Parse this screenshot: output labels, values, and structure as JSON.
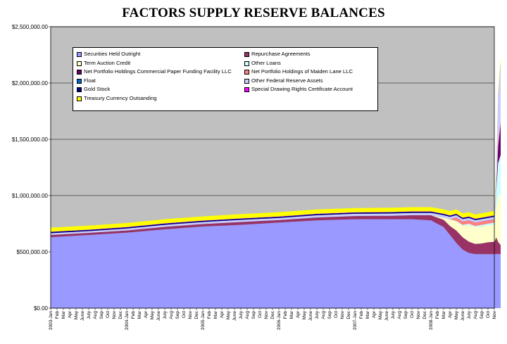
{
  "chart_data": {
    "type": "area",
    "title": "FACTORS SUPPLY RESERVE BALANCES",
    "stacked": true,
    "ylim": [
      0,
      2500000
    ],
    "y_ticks": [
      "$0.00",
      "$500,000.00",
      "$1,000,000.00",
      "$1,500,000.00",
      "$2,000,000.00",
      "$2,500,000.00"
    ],
    "y_tick_values": [
      0,
      500000,
      1000000,
      1500000,
      2000000,
      2500000
    ],
    "x_tick_labels": [
      "2003-Jan",
      "Feb",
      "Mar",
      "Apr",
      "May",
      "June",
      "July",
      "Aug",
      "Sep",
      "Oct",
      "Nov",
      "Dec",
      "2004-Jan",
      "Feb",
      "Mar",
      "Apr",
      "May",
      "June",
      "July",
      "Aug",
      "Sep",
      "Oct",
      "Nov",
      "Dec",
      "2005-Jan",
      "Feb",
      "Mar",
      "Apr",
      "May",
      "June",
      "July",
      "Aug",
      "Sep",
      "Oct",
      "Nov",
      "Dec",
      "2006-Jan",
      "Feb",
      "Mar",
      "Apr",
      "May",
      "June",
      "July",
      "Aug",
      "Sep",
      "Oct",
      "Nov",
      "Dec",
      "2007-Jan",
      "Feb",
      "Mar",
      "Apr",
      "May",
      "June",
      "July",
      "Aug",
      "Sep",
      "Oct",
      "Nov",
      "Dec",
      "2008-Jan",
      "Feb",
      "Mar",
      "Apr",
      "May",
      "June",
      "July",
      "Aug",
      "Sep",
      "Oct",
      "Nov"
    ],
    "x": [
      0,
      6,
      12,
      18,
      24,
      30,
      36,
      42,
      48,
      54,
      57,
      60,
      62,
      63,
      64,
      65,
      66,
      67,
      68,
      69,
      70,
      70.3,
      70.6,
      71
    ],
    "series": [
      {
        "name": "Securities Held Outright",
        "color": "#9999ff",
        "values": [
          630000,
          650000,
          670000,
          700000,
          725000,
          740000,
          760000,
          780000,
          790000,
          790000,
          790000,
          780000,
          720000,
          650000,
          580000,
          520000,
          490000,
          480000,
          480000,
          480000,
          480000,
          480000,
          480000,
          480000
        ]
      },
      {
        "name": "Repurchase Agreements",
        "color": "#993366",
        "values": [
          20000,
          18000,
          20000,
          22000,
          22000,
          25000,
          22000,
          25000,
          28000,
          30000,
          35000,
          45000,
          65000,
          80000,
          110000,
          110000,
          100000,
          90000,
          95000,
          105000,
          110000,
          150000,
          110000,
          80000
        ]
      },
      {
        "name": "Term Auction Credit",
        "color": "#ffffcc",
        "values": [
          0,
          0,
          0,
          0,
          0,
          0,
          0,
          0,
          0,
          0,
          0,
          0,
          20000,
          60000,
          80000,
          100000,
          150000,
          150000,
          150000,
          150000,
          150000,
          250000,
          400000,
          450000
        ]
      },
      {
        "name": "Other Loans",
        "color": "#ccffff",
        "values": [
          0,
          0,
          0,
          0,
          0,
          0,
          0,
          0,
          0,
          0,
          0,
          0,
          0,
          0,
          5000,
          10000,
          10000,
          10000,
          15000,
          15000,
          20000,
          150000,
          300000,
          350000
        ]
      },
      {
        "name": "Net Portfolio Holdings Commercial Paper Funding Facility LLC",
        "color": "#660066",
        "values": [
          0,
          0,
          0,
          0,
          0,
          0,
          0,
          0,
          0,
          0,
          0,
          0,
          0,
          0,
          0,
          0,
          0,
          0,
          0,
          0,
          0,
          0,
          150000,
          280000
        ]
      },
      {
        "name": "Net Portfolio Holdings of Maiden Lane LLC",
        "color": "#ff8080",
        "values": [
          0,
          0,
          0,
          0,
          0,
          0,
          0,
          0,
          0,
          0,
          0,
          0,
          0,
          0,
          30000,
          30000,
          30000,
          30000,
          30000,
          30000,
          30000,
          30000,
          30000,
          30000
        ]
      },
      {
        "name": "Float",
        "color": "#0066cc",
        "values": [
          1000,
          1000,
          1000,
          1000,
          1000,
          1000,
          1000,
          1000,
          1000,
          1000,
          1000,
          1000,
          1000,
          1000,
          1000,
          1000,
          1000,
          1000,
          1000,
          1000,
          1000,
          1000,
          1000,
          1000
        ]
      },
      {
        "name": "Other Federal Reserve Assets",
        "color": "#ccccff",
        "values": [
          15000,
          15000,
          16000,
          17000,
          17000,
          18000,
          18000,
          19000,
          19000,
          20000,
          20000,
          20000,
          20000,
          20000,
          20000,
          20000,
          20000,
          20000,
          20000,
          20000,
          20000,
          150000,
          400000,
          500000
        ]
      },
      {
        "name": "Gold Stock",
        "color": "#000080",
        "values": [
          11000,
          11000,
          11000,
          11000,
          11000,
          11000,
          11000,
          11000,
          11000,
          11000,
          11000,
          11000,
          11000,
          11000,
          11000,
          11000,
          11000,
          11000,
          11000,
          11000,
          11000,
          11000,
          11000,
          11000
        ]
      },
      {
        "name": "Special Drawing Rights Certificate Account",
        "color": "#ff00ff",
        "values": [
          2200,
          2200,
          2200,
          2200,
          2200,
          2200,
          2200,
          2200,
          2200,
          2200,
          2200,
          2200,
          2200,
          2200,
          2200,
          2200,
          2200,
          2200,
          2200,
          2200,
          2200,
          2200,
          2200,
          2200
        ]
      },
      {
        "name": "Treasury Currency Outsanding",
        "color": "#ffff00",
        "values": [
          36000,
          36000,
          36000,
          37000,
          37000,
          38000,
          38000,
          38000,
          38000,
          38000,
          38000,
          38000,
          38000,
          38000,
          38000,
          38000,
          38000,
          38000,
          38000,
          38000,
          38000,
          38000,
          38000,
          38000
        ]
      }
    ],
    "legend_placement": "top-left inside plot",
    "plot_background": "#c0c0c0",
    "gridlines": "horizontal"
  }
}
